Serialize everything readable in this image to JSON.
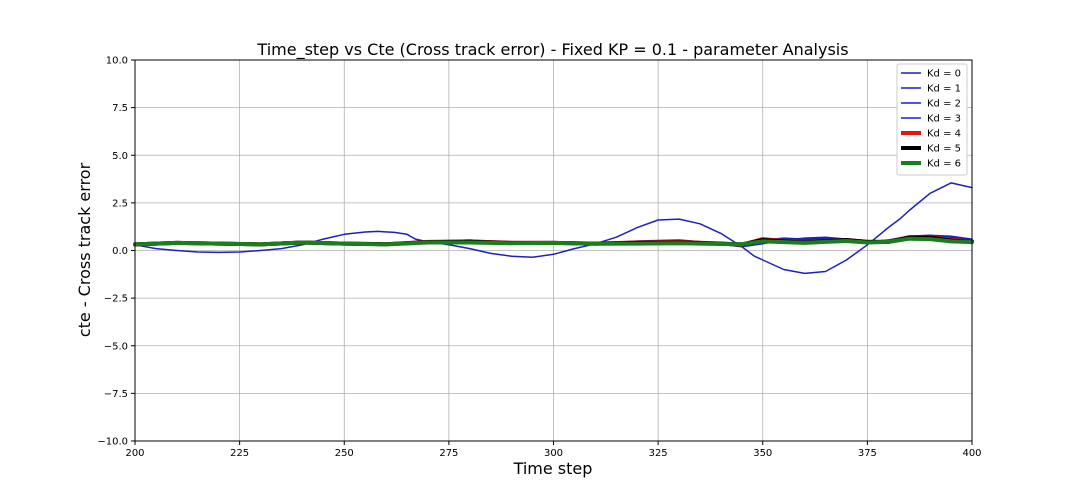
{
  "chart_data": {
    "type": "line",
    "title": "Time_step vs Cte (Cross track error) - Fixed KP = 0.1 - parameter Analysis",
    "xlabel": "Time step",
    "ylabel": "cte - Cross track error",
    "xlim": [
      200,
      400
    ],
    "ylim": [
      -10,
      10
    ],
    "xticks": [
      200,
      225,
      250,
      275,
      300,
      325,
      350,
      375,
      400
    ],
    "yticks": [
      -10,
      -7.5,
      -5,
      -2.5,
      0,
      2.5,
      5,
      7.5,
      10
    ],
    "xtick_labels": [
      "200",
      "225",
      "250",
      "275",
      "300",
      "325",
      "350",
      "375",
      "400"
    ],
    "ytick_labels": [
      "−10.0",
      "−7.5",
      "−5.0",
      "−2.5",
      "0.0",
      "2.5",
      "5.0",
      "7.5",
      "10.0"
    ],
    "grid": true,
    "legend_position": "top-right",
    "series": [
      {
        "name": "Kd = 0",
        "color": "#1f1fbf",
        "width": 1.5,
        "x": [
          200,
          205,
          210,
          215,
          220,
          225,
          230,
          235,
          240,
          245,
          250,
          255,
          258,
          262,
          265,
          267,
          270,
          275,
          280,
          285,
          290,
          295,
          300,
          305,
          310,
          315,
          320,
          325,
          330,
          335,
          340,
          345,
          348,
          350,
          355,
          360,
          365,
          370,
          375,
          380,
          383,
          385,
          390,
          395,
          400
        ],
        "y": [
          0.3,
          0.1,
          0.0,
          -0.08,
          -0.1,
          -0.08,
          0.0,
          0.1,
          0.3,
          0.6,
          0.85,
          0.97,
          1.0,
          0.95,
          0.85,
          0.6,
          0.45,
          0.3,
          0.1,
          -0.15,
          -0.3,
          -0.35,
          -0.2,
          0.1,
          0.35,
          0.7,
          1.2,
          1.6,
          1.65,
          1.4,
          0.9,
          0.2,
          -0.3,
          -0.5,
          -1.0,
          -1.2,
          -1.1,
          -0.5,
          0.3,
          1.2,
          1.7,
          2.1,
          3.0,
          3.55,
          3.3
        ]
      },
      {
        "name": "Kd = 1",
        "color": "#1f1fbf",
        "width": 1.5,
        "x": [
          200,
          210,
          220,
          230,
          240,
          250,
          260,
          270,
          280,
          290,
          300,
          310,
          320,
          330,
          340,
          345,
          350,
          355,
          360,
          365,
          370,
          375,
          380,
          385,
          390,
          395,
          400
        ],
        "y": [
          0.3,
          0.38,
          0.35,
          0.3,
          0.4,
          0.35,
          0.3,
          0.45,
          0.5,
          0.4,
          0.4,
          0.35,
          0.45,
          0.5,
          0.35,
          0.3,
          0.5,
          0.6,
          0.55,
          0.6,
          0.5,
          0.45,
          0.5,
          0.7,
          0.75,
          0.7,
          0.55
        ]
      },
      {
        "name": "Kd = 2",
        "color": "#1f1fbf",
        "width": 1.5,
        "x": [
          200,
          210,
          220,
          230,
          240,
          250,
          260,
          270,
          280,
          290,
          300,
          310,
          320,
          330,
          340,
          345,
          350,
          355,
          360,
          365,
          370,
          375,
          380,
          385,
          390,
          395,
          400
        ],
        "y": [
          0.32,
          0.4,
          0.36,
          0.32,
          0.42,
          0.36,
          0.32,
          0.48,
          0.55,
          0.42,
          0.42,
          0.38,
          0.5,
          0.55,
          0.38,
          0.28,
          0.55,
          0.65,
          0.6,
          0.65,
          0.55,
          0.45,
          0.55,
          0.75,
          0.8,
          0.75,
          0.6
        ]
      },
      {
        "name": "Kd = 3",
        "color": "#1f1fbf",
        "width": 1.5,
        "x": [
          200,
          210,
          220,
          230,
          240,
          250,
          260,
          270,
          280,
          290,
          300,
          310,
          320,
          330,
          340,
          345,
          350,
          355,
          360,
          365,
          370,
          375,
          380,
          385,
          390,
          395,
          400
        ],
        "y": [
          0.3,
          0.36,
          0.34,
          0.3,
          0.38,
          0.33,
          0.3,
          0.42,
          0.48,
          0.38,
          0.38,
          0.34,
          0.46,
          0.5,
          0.32,
          0.2,
          0.35,
          0.55,
          0.65,
          0.7,
          0.6,
          0.45,
          0.5,
          0.65,
          0.7,
          0.62,
          0.5
        ]
      },
      {
        "name": "Kd = 4",
        "color": "#e8140c",
        "width": 4,
        "x": [
          200,
          210,
          220,
          230,
          240,
          250,
          260,
          270,
          280,
          290,
          300,
          310,
          320,
          330,
          340,
          345,
          350,
          355,
          360,
          365,
          370,
          375,
          380,
          385,
          390,
          395,
          400
        ],
        "y": [
          0.32,
          0.4,
          0.36,
          0.32,
          0.42,
          0.36,
          0.33,
          0.45,
          0.48,
          0.4,
          0.4,
          0.36,
          0.42,
          0.45,
          0.36,
          0.3,
          0.6,
          0.5,
          0.42,
          0.48,
          0.55,
          0.45,
          0.45,
          0.7,
          0.72,
          0.55,
          0.48
        ]
      },
      {
        "name": "Kd = 5",
        "color": "#000000",
        "width": 4,
        "x": [
          200,
          210,
          220,
          230,
          240,
          250,
          260,
          270,
          280,
          290,
          300,
          310,
          320,
          330,
          340,
          345,
          350,
          355,
          360,
          365,
          370,
          375,
          380,
          385,
          390,
          395,
          400
        ],
        "y": [
          0.32,
          0.4,
          0.36,
          0.32,
          0.42,
          0.36,
          0.33,
          0.44,
          0.46,
          0.4,
          0.4,
          0.36,
          0.4,
          0.42,
          0.36,
          0.32,
          0.55,
          0.48,
          0.42,
          0.48,
          0.55,
          0.45,
          0.45,
          0.68,
          0.68,
          0.52,
          0.46
        ]
      },
      {
        "name": "Kd = 6",
        "color": "#1a7f1a",
        "width": 4,
        "x": [
          200,
          210,
          220,
          230,
          240,
          250,
          260,
          270,
          280,
          290,
          300,
          310,
          320,
          330,
          340,
          345,
          350,
          355,
          360,
          365,
          370,
          375,
          380,
          385,
          390,
          395,
          400
        ],
        "y": [
          0.32,
          0.4,
          0.36,
          0.32,
          0.42,
          0.36,
          0.32,
          0.42,
          0.42,
          0.38,
          0.4,
          0.35,
          0.36,
          0.38,
          0.34,
          0.33,
          0.48,
          0.44,
          0.4,
          0.45,
          0.5,
          0.42,
          0.45,
          0.62,
          0.6,
          0.48,
          0.44
        ]
      }
    ]
  }
}
